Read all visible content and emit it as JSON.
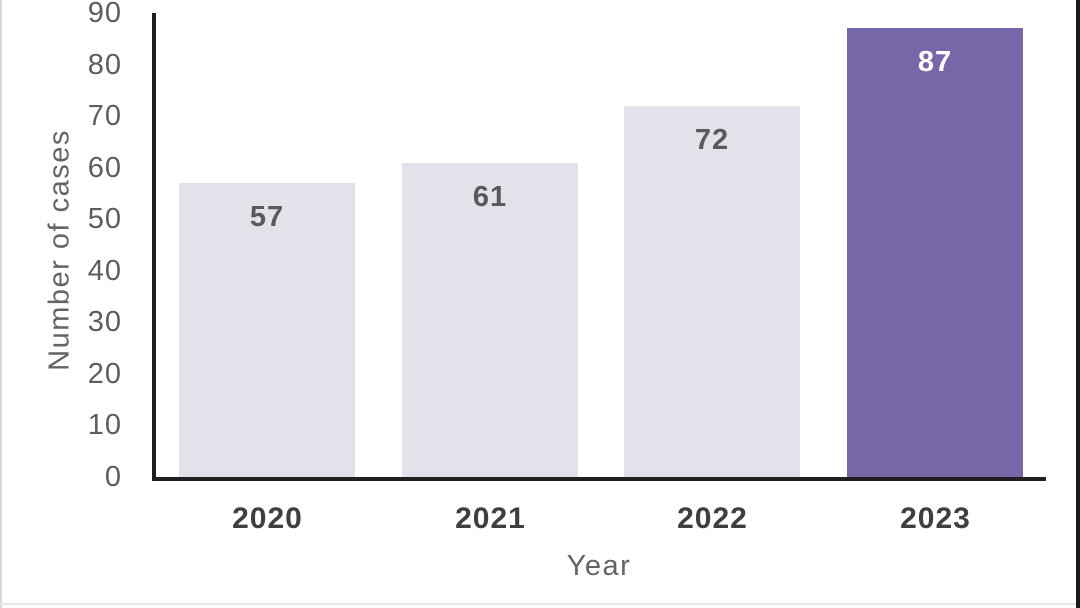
{
  "chart_data": {
    "type": "bar",
    "title": "",
    "xlabel": "Year",
    "ylabel": "Number of cases",
    "categories": [
      "2020",
      "2021",
      "2022",
      "2023"
    ],
    "values": [
      57,
      61,
      72,
      87
    ],
    "data_labels": [
      "57",
      "61",
      "72",
      "87"
    ],
    "yticks": [
      0,
      10,
      20,
      30,
      40,
      50,
      60,
      70,
      80,
      90
    ],
    "ylim": [
      0,
      90
    ],
    "grid": false,
    "legend": false,
    "highlight_index": 3,
    "colors": {
      "bar_default": "#e5e1eb",
      "bar_highlight": "#7766a8",
      "data_label_default": "#595959",
      "data_label_highlight": "#ffffff",
      "axis_line": "#202020",
      "tick_text": "#5d5d5d",
      "axis_title_text": "#646464",
      "category_text": "#3f3f3f"
    }
  }
}
